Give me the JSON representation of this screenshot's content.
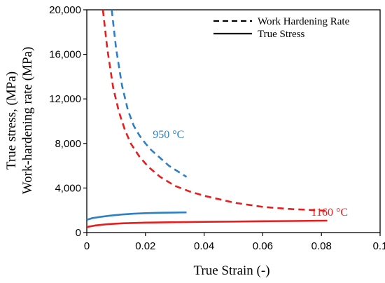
{
  "chart_data": {
    "type": "line",
    "xlabel": "True Strain (-)",
    "ylabel_line1": "True stress, (MPa)",
    "ylabel_line2": "Work-hardening rate (MPa)",
    "xlim": [
      0,
      0.1
    ],
    "ylim": [
      0,
      20000
    ],
    "x_ticks": [
      0,
      0.02,
      0.04,
      0.06,
      0.08,
      0.1
    ],
    "x_tick_labels": [
      "0",
      "0.02",
      "0.04",
      "0.06",
      "0.08",
      "0.1"
    ],
    "y_ticks": [
      0,
      4000,
      8000,
      12000,
      16000,
      20000
    ],
    "y_tick_labels": [
      "0",
      "4,000",
      "8,000",
      "12,000",
      "16,000",
      "20,000"
    ],
    "grid": false,
    "legend": {
      "position": "top-right",
      "entries": [
        {
          "label": "Work Hardening Rate",
          "style": "dashed"
        },
        {
          "label": "True Stress",
          "style": "solid"
        }
      ]
    },
    "annotations": [
      {
        "text": "950 °C",
        "color": "#2f7fc4",
        "x": 0.0225,
        "y": 8500
      },
      {
        "text": "1160 °C",
        "color": "#e61e1e",
        "x": 0.0765,
        "y": 1500
      }
    ],
    "series": [
      {
        "color": "#2f7fc4",
        "style": "dashed",
        "points": [
          [
            0.0085,
            20000
          ],
          [
            0.01,
            16500
          ],
          [
            0.012,
            13200
          ],
          [
            0.014,
            11000
          ],
          [
            0.016,
            9600
          ],
          [
            0.018,
            8700
          ],
          [
            0.02,
            8000
          ],
          [
            0.022,
            7400
          ],
          [
            0.025,
            6700
          ],
          [
            0.028,
            6000
          ],
          [
            0.031,
            5500
          ],
          [
            0.034,
            5000
          ]
        ]
      },
      {
        "color": "#e61e1e",
        "style": "dashed",
        "points": [
          [
            0.0055,
            20000
          ],
          [
            0.007,
            16500
          ],
          [
            0.009,
            13000
          ],
          [
            0.011,
            10800
          ],
          [
            0.013,
            9200
          ],
          [
            0.015,
            8000
          ],
          [
            0.018,
            6800
          ],
          [
            0.021,
            5900
          ],
          [
            0.025,
            5000
          ],
          [
            0.03,
            4200
          ],
          [
            0.035,
            3700
          ],
          [
            0.04,
            3300
          ],
          [
            0.045,
            3000
          ],
          [
            0.05,
            2700
          ],
          [
            0.055,
            2500
          ],
          [
            0.06,
            2300
          ],
          [
            0.065,
            2200
          ],
          [
            0.07,
            2100
          ],
          [
            0.075,
            2050
          ],
          [
            0.082,
            1950
          ]
        ]
      },
      {
        "color": "#2f7fc4",
        "style": "solid",
        "points": [
          [
            0.0,
            1150
          ],
          [
            0.002,
            1300
          ],
          [
            0.005,
            1420
          ],
          [
            0.008,
            1520
          ],
          [
            0.012,
            1620
          ],
          [
            0.016,
            1690
          ],
          [
            0.02,
            1740
          ],
          [
            0.025,
            1780
          ],
          [
            0.03,
            1800
          ],
          [
            0.034,
            1810
          ]
        ]
      },
      {
        "color": "#e61e1e",
        "style": "solid",
        "points": [
          [
            0.0,
            500
          ],
          [
            0.003,
            640
          ],
          [
            0.007,
            750
          ],
          [
            0.012,
            830
          ],
          [
            0.02,
            890
          ],
          [
            0.03,
            930
          ],
          [
            0.04,
            960
          ],
          [
            0.05,
            990
          ],
          [
            0.06,
            1020
          ],
          [
            0.07,
            1040
          ],
          [
            0.082,
            1070
          ]
        ]
      }
    ]
  }
}
